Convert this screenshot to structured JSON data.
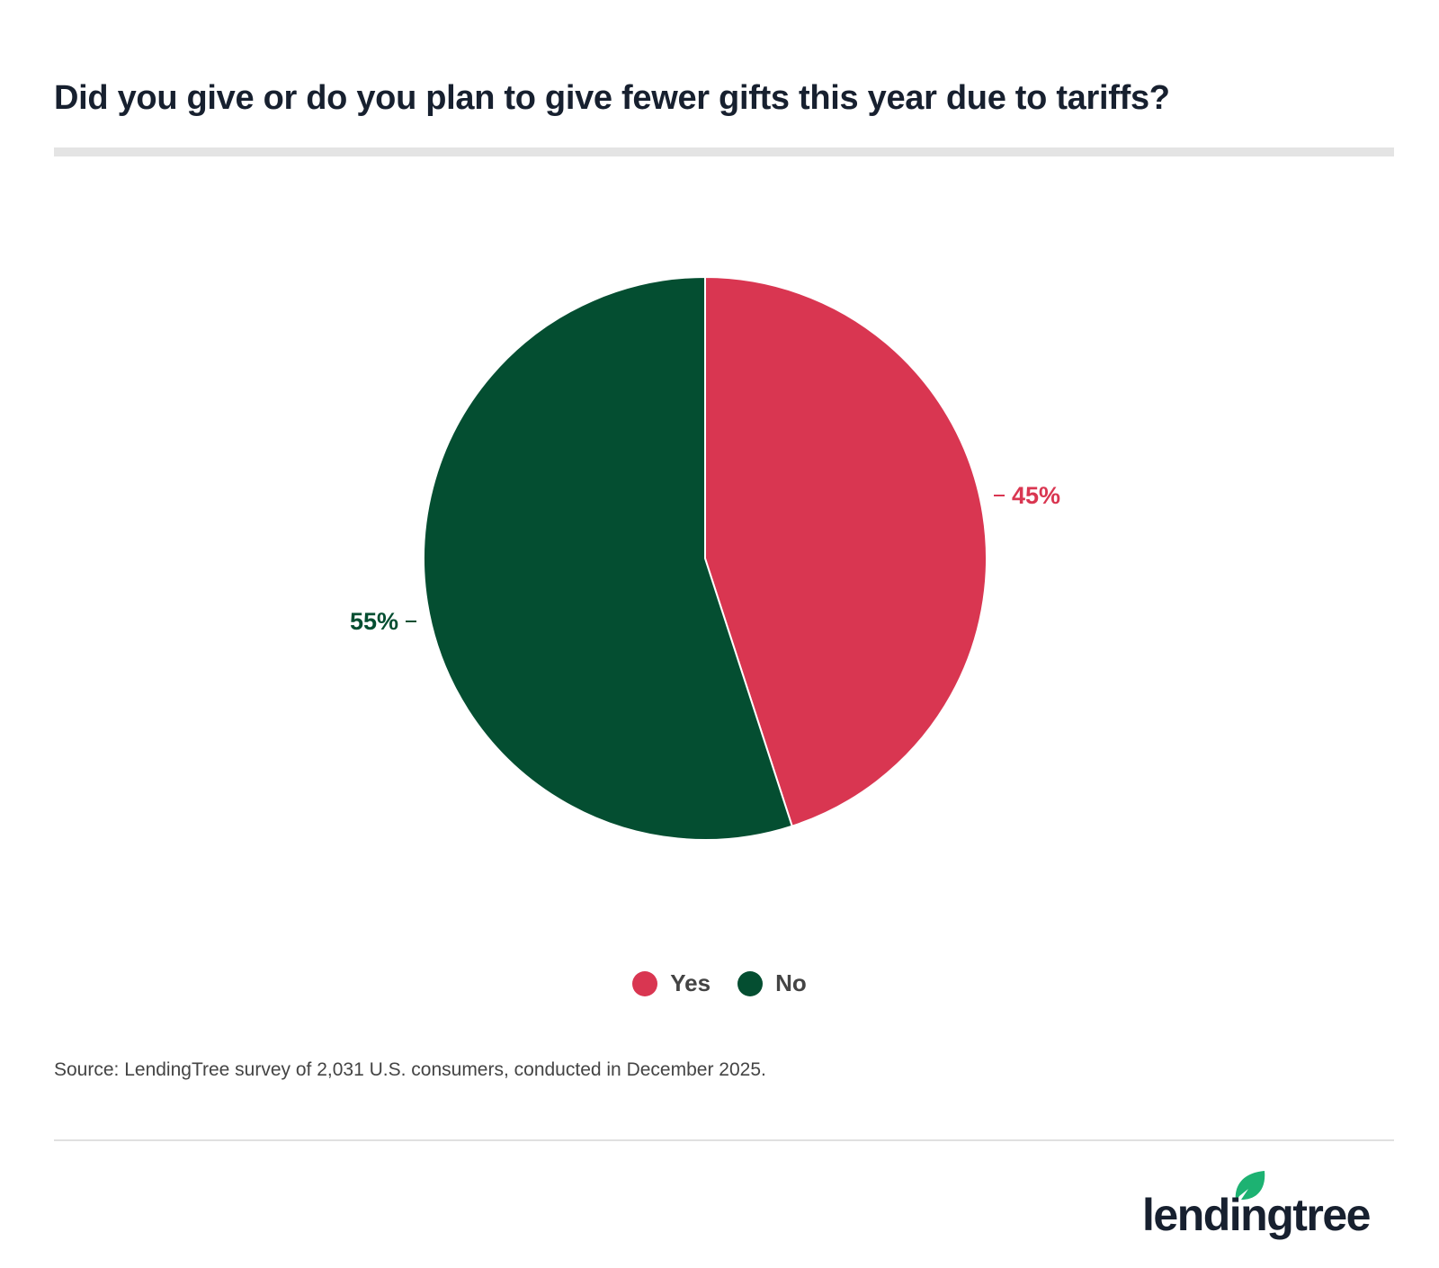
{
  "title": "Did you give or do you plan to give fewer gifts this year due to tariffs?",
  "chart_data": {
    "type": "pie",
    "title": "Did you give or do you plan to give fewer gifts this year due to tariffs?",
    "categories": [
      "Yes",
      "No"
    ],
    "values": [
      45,
      55
    ],
    "labels": [
      "45%",
      "55%"
    ],
    "colors": [
      "#D93651",
      "#044E31"
    ],
    "legend": "bottom"
  },
  "source": "Source: LendingTree survey of 2,031 U.S. consumers, conducted in December 2025.",
  "logo": {
    "text": "lendingtree",
    "leaf_color": "#1DB272"
  }
}
